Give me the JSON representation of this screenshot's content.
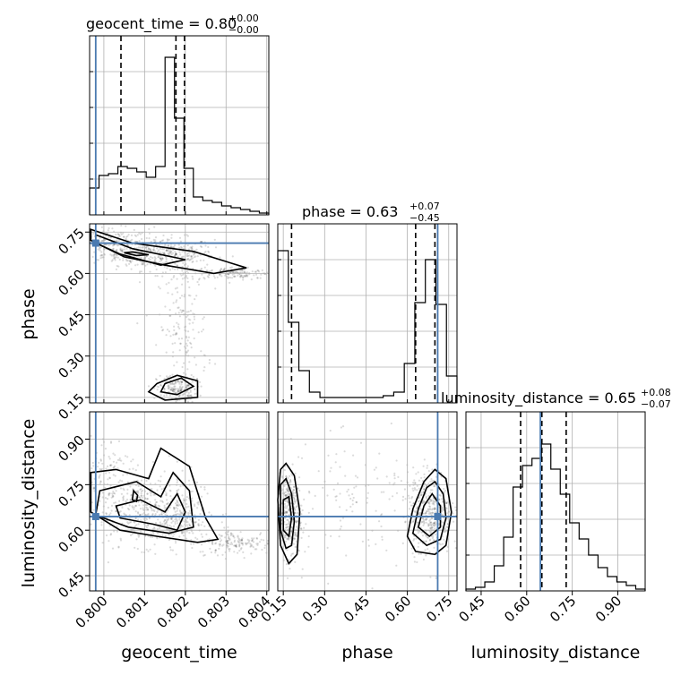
{
  "chart_data": {
    "type": "corner",
    "parameters": [
      "geocent_time",
      "phase",
      "luminosity_distance"
    ],
    "axis_labels": {
      "geocent_time": "geocent_time",
      "phase": "phase",
      "luminosity_distance": "luminosity_distance"
    },
    "titles": {
      "geocent_time": {
        "name": "geocent_time = 0.80",
        "sup": "+0.00",
        "sub": "−0.00"
      },
      "phase": {
        "name": "phase = 0.63",
        "sup": "+0.07",
        "sub": "−0.45"
      },
      "luminosity_distance": {
        "name": "luminosity_distance = 0.65",
        "sup": "+0.08",
        "sub": "−0.07"
      }
    },
    "ranges": {
      "geocent_time": [
        0.79965,
        0.80405
      ],
      "phase": [
        0.13,
        0.78
      ],
      "luminosity_distance": [
        0.4,
        0.99
      ]
    },
    "ticks": {
      "geocent_time": [
        "0.800",
        "0.801",
        "0.802",
        "0.803",
        "0.804"
      ],
      "phase": [
        "0.15",
        "0.30",
        "0.45",
        "0.60",
        "0.75"
      ],
      "luminosity_distance": [
        "0.45",
        "0.60",
        "0.75",
        "0.90"
      ]
    },
    "truths": {
      "geocent_time": 0.7998,
      "phase": 0.71,
      "luminosity_distance": 0.645
    },
    "quantiles": {
      "geocent_time": [
        0.80042,
        0.80177,
        0.80198
      ],
      "phase": [
        0.18,
        0.63,
        0.7
      ],
      "luminosity_distance": [
        0.58,
        0.65,
        0.73
      ]
    },
    "histograms": {
      "geocent_time": [
        0.15,
        0.22,
        0.23,
        0.27,
        0.26,
        0.24,
        0.21,
        0.27,
        0.88,
        0.54,
        0.26,
        0.1,
        0.08,
        0.07,
        0.05,
        0.04,
        0.03,
        0.02,
        0.01
      ],
      "phase": [
        0.85,
        0.45,
        0.18,
        0.06,
        0.03,
        0.03,
        0.03,
        0.03,
        0.03,
        0.03,
        0.04,
        0.06,
        0.22,
        0.56,
        0.8,
        0.55,
        0.15
      ],
      "luminosity_distance": [
        0.01,
        0.02,
        0.05,
        0.14,
        0.3,
        0.58,
        0.7,
        0.74,
        0.82,
        0.68,
        0.54,
        0.38,
        0.29,
        0.2,
        0.13,
        0.08,
        0.05,
        0.03,
        0.01
      ]
    },
    "contours": {
      "phase_vs_geocent_time": [
        [
          [
            0.79968,
            0.76
          ],
          [
            0.8007,
            0.71
          ],
          [
            0.8022,
            0.68
          ],
          [
            0.8035,
            0.62
          ],
          [
            0.8027,
            0.6
          ],
          [
            0.8015,
            0.63
          ],
          [
            0.8005,
            0.66
          ],
          [
            0.79968,
            0.72
          ]
        ],
        [
          [
            0.7998,
            0.74
          ],
          [
            0.8007,
            0.69
          ],
          [
            0.802,
            0.65
          ],
          [
            0.8014,
            0.63
          ],
          [
            0.8004,
            0.67
          ],
          [
            0.7998,
            0.71
          ]
        ],
        [
          [
            0.8005,
            0.675
          ],
          [
            0.8008,
            0.665
          ],
          [
            0.8011,
            0.668
          ],
          [
            0.8007,
            0.678
          ]
        ],
        [
          [
            0.8013,
            0.2
          ],
          [
            0.8018,
            0.23
          ],
          [
            0.8023,
            0.21
          ],
          [
            0.8023,
            0.15
          ],
          [
            0.8015,
            0.14
          ],
          [
            0.8011,
            0.17
          ]
        ],
        [
          [
            0.8015,
            0.2
          ],
          [
            0.8019,
            0.22
          ],
          [
            0.8022,
            0.19
          ],
          [
            0.8018,
            0.16
          ],
          [
            0.8014,
            0.17
          ]
        ]
      ],
      "luminosity_distance_vs_geocent_time": [
        [
          [
            0.79968,
            0.79
          ],
          [
            0.8003,
            0.8
          ],
          [
            0.8011,
            0.77
          ],
          [
            0.8014,
            0.87
          ],
          [
            0.8021,
            0.81
          ],
          [
            0.8025,
            0.64
          ],
          [
            0.8028,
            0.57
          ],
          [
            0.8023,
            0.56
          ],
          [
            0.8013,
            0.58
          ],
          [
            0.8004,
            0.6
          ],
          [
            0.79968,
            0.66
          ]
        ],
        [
          [
            0.7999,
            0.73
          ],
          [
            0.8008,
            0.76
          ],
          [
            0.8014,
            0.71
          ],
          [
            0.8017,
            0.79
          ],
          [
            0.8021,
            0.73
          ],
          [
            0.8022,
            0.61
          ],
          [
            0.8016,
            0.59
          ],
          [
            0.8006,
            0.61
          ],
          [
            0.7998,
            0.65
          ]
        ],
        [
          [
            0.8003,
            0.68
          ],
          [
            0.8009,
            0.7
          ],
          [
            0.8015,
            0.66
          ],
          [
            0.8018,
            0.72
          ],
          [
            0.802,
            0.66
          ],
          [
            0.8018,
            0.6
          ],
          [
            0.8012,
            0.62
          ],
          [
            0.8004,
            0.64
          ]
        ],
        [
          [
            0.80073,
            0.73
          ],
          [
            0.80083,
            0.715
          ],
          [
            0.8008,
            0.695
          ],
          [
            0.8007,
            0.7
          ]
        ]
      ],
      "luminosity_distance_vs_phase": [
        [
          [
            0.14,
            0.8
          ],
          [
            0.16,
            0.82
          ],
          [
            0.19,
            0.78
          ],
          [
            0.21,
            0.66
          ],
          [
            0.2,
            0.52
          ],
          [
            0.17,
            0.49
          ],
          [
            0.14,
            0.55
          ],
          [
            0.13,
            0.7
          ]
        ],
        [
          [
            0.14,
            0.75
          ],
          [
            0.16,
            0.77
          ],
          [
            0.18,
            0.72
          ],
          [
            0.19,
            0.63
          ],
          [
            0.18,
            0.55
          ],
          [
            0.16,
            0.54
          ],
          [
            0.14,
            0.6
          ]
        ],
        [
          [
            0.15,
            0.7
          ],
          [
            0.17,
            0.71
          ],
          [
            0.18,
            0.64
          ],
          [
            0.17,
            0.58
          ],
          [
            0.15,
            0.6
          ]
        ],
        [
          [
            0.6,
            0.58
          ],
          [
            0.62,
            0.67
          ],
          [
            0.66,
            0.76
          ],
          [
            0.7,
            0.8
          ],
          [
            0.74,
            0.77
          ],
          [
            0.76,
            0.66
          ],
          [
            0.74,
            0.55
          ],
          [
            0.7,
            0.52
          ],
          [
            0.63,
            0.53
          ]
        ],
        [
          [
            0.62,
            0.59
          ],
          [
            0.64,
            0.67
          ],
          [
            0.67,
            0.74
          ],
          [
            0.7,
            0.76
          ],
          [
            0.73,
            0.72
          ],
          [
            0.74,
            0.64
          ],
          [
            0.72,
            0.57
          ],
          [
            0.67,
            0.55
          ]
        ],
        [
          [
            0.64,
            0.61
          ],
          [
            0.66,
            0.68
          ],
          [
            0.69,
            0.72
          ],
          [
            0.72,
            0.68
          ],
          [
            0.72,
            0.61
          ],
          [
            0.68,
            0.58
          ]
        ]
      ]
    },
    "density_blobs": {
      "phase_vs_geocent_time": [
        {
          "x": 0.8015,
          "y": 0.67,
          "sx": 0.0006,
          "sy": 0.03,
          "n": 380
        },
        {
          "x": 0.8003,
          "y": 0.7,
          "sx": 0.0004,
          "sy": 0.03,
          "n": 200
        },
        {
          "x": 0.8032,
          "y": 0.6,
          "sx": 0.0006,
          "sy": 0.012,
          "n": 160
        },
        {
          "x": 0.8018,
          "y": 0.18,
          "sx": 0.00025,
          "sy": 0.025,
          "n": 180
        },
        {
          "x": 0.80195,
          "y": 0.4,
          "sx": 0.0003,
          "sy": 0.12,
          "n": 170
        }
      ],
      "luminosity_distance_vs_geocent_time": [
        {
          "x": 0.801,
          "y": 0.67,
          "sx": 0.0007,
          "sy": 0.06,
          "n": 450
        },
        {
          "x": 0.8018,
          "y": 0.63,
          "sx": 0.0003,
          "sy": 0.04,
          "n": 180
        },
        {
          "x": 0.8033,
          "y": 0.56,
          "sx": 0.0005,
          "sy": 0.02,
          "n": 170
        },
        {
          "x": 0.8,
          "y": 0.8,
          "sx": 0.0003,
          "sy": 0.06,
          "n": 90
        }
      ],
      "luminosity_distance_vs_phase": [
        {
          "x": 0.17,
          "y": 0.65,
          "sx": 0.022,
          "sy": 0.07,
          "n": 360
        },
        {
          "x": 0.68,
          "y": 0.66,
          "sx": 0.04,
          "sy": 0.07,
          "n": 440
        },
        {
          "x": 0.42,
          "y": 0.68,
          "sx": 0.15,
          "sy": 0.1,
          "n": 130
        }
      ]
    },
    "colors": {
      "truth": "#4a7ab0",
      "lines": "#000000",
      "grid": "#b0b0b0"
    },
    "grid": true
  }
}
